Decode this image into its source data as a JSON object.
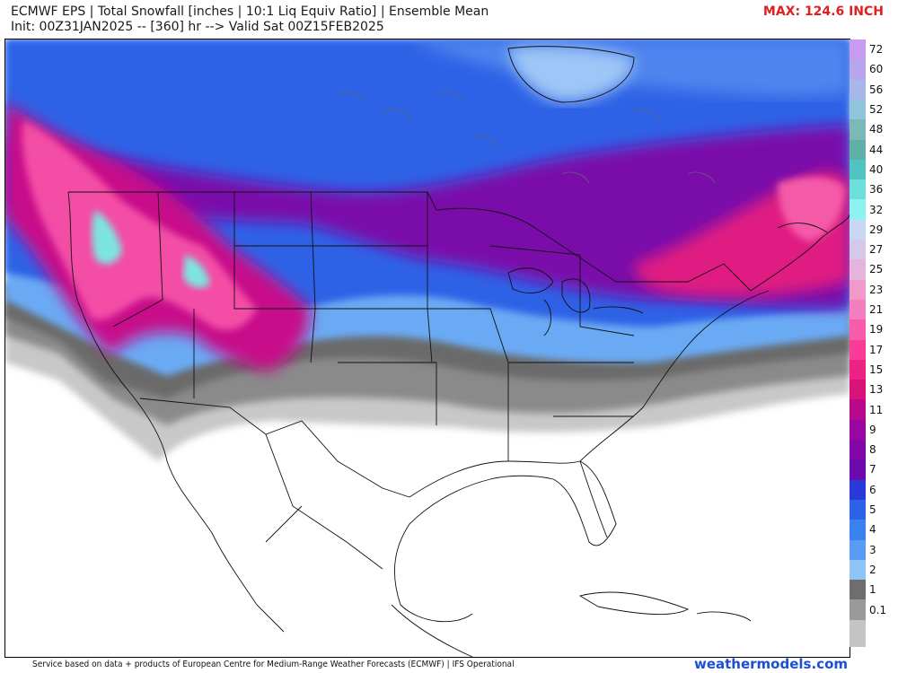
{
  "header": {
    "title": "ECMWF EPS | Total Snowfall [inches | 10:1 Liq Equiv Ratio] | Ensemble Mean",
    "subtitle": "Init: 00Z31JAN2025 -- [360] hr --> Valid Sat 00Z15FEB2025",
    "max_label": "MAX: 124.6 INCH"
  },
  "legend": {
    "levels": [
      {
        "label": "72",
        "color": "#c89af0"
      },
      {
        "label": "60",
        "color": "#b7a6ec"
      },
      {
        "label": "56",
        "color": "#a8b6ea"
      },
      {
        "label": "52",
        "color": "#92c4dc"
      },
      {
        "label": "48",
        "color": "#7cb8b8"
      },
      {
        "label": "44",
        "color": "#5fb0a8"
      },
      {
        "label": "40",
        "color": "#4fc4c0"
      },
      {
        "label": "36",
        "color": "#6ee0dc"
      },
      {
        "label": "32",
        "color": "#8ef2f0"
      },
      {
        "label": "29",
        "color": "#c8d8f2"
      },
      {
        "label": "27",
        "color": "#d6c8ea"
      },
      {
        "label": "25",
        "color": "#e4b4dc"
      },
      {
        "label": "23",
        "color": "#f09acc"
      },
      {
        "label": "21",
        "color": "#f47fbe"
      },
      {
        "label": "19",
        "color": "#f85cac"
      },
      {
        "label": "17",
        "color": "#f83c98"
      },
      {
        "label": "15",
        "color": "#ec2384"
      },
      {
        "label": "13",
        "color": "#d81478"
      },
      {
        "label": "11",
        "color": "#b8088e"
      },
      {
        "label": "9",
        "color": "#9a06a0"
      },
      {
        "label": "8",
        "color": "#8206a8"
      },
      {
        "label": "7",
        "color": "#6c0aae"
      },
      {
        "label": "6",
        "color": "#2a3ad8"
      },
      {
        "label": "5",
        "color": "#2a62e8"
      },
      {
        "label": "4",
        "color": "#3a82ee"
      },
      {
        "label": "3",
        "color": "#5a9cf4"
      },
      {
        "label": "2",
        "color": "#8ec4f8"
      },
      {
        "label": "1",
        "color": "#6e6e6e"
      },
      {
        "label": "0.1",
        "color": "#9a9a9a"
      }
    ],
    "bottom_color": "#c4c4c4"
  },
  "footer": {
    "credit": "Service based on data + products of European Centre for Medium-Range Weather Forecasts (ECMWF) | IFS Operational",
    "site": "weathermodels.com"
  }
}
